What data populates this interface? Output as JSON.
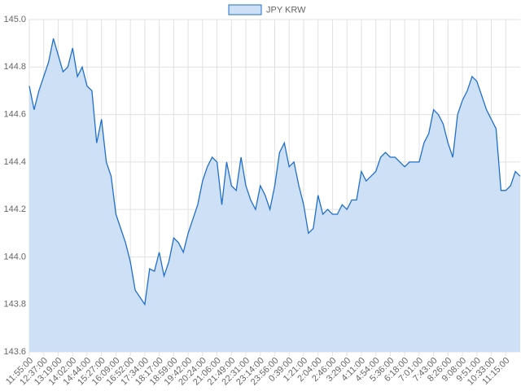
{
  "chart_data": {
    "type": "area",
    "categories": [
      "11:55:00",
      null,
      null,
      "12:37:00",
      null,
      null,
      "13:19:00",
      null,
      null,
      "14:02:00",
      null,
      null,
      "14:44:00",
      null,
      null,
      "15:27:00",
      null,
      null,
      "16:09:00",
      null,
      null,
      "16:52:00",
      null,
      null,
      "17:34:00",
      null,
      null,
      "18:17:00",
      null,
      null,
      "18:59:00",
      null,
      null,
      "19:42:00",
      null,
      null,
      "20:24:00",
      null,
      null,
      "21:06:00",
      null,
      null,
      "21:49:00",
      null,
      null,
      "22:31:00",
      null,
      null,
      "23:14:00",
      null,
      null,
      "23:56:00",
      null,
      null,
      "0:39:00",
      null,
      null,
      "1:21:00",
      null,
      null,
      "2:04:00",
      null,
      null,
      "2:46:00",
      null,
      null,
      "3:29:00",
      null,
      null,
      "4:11:00",
      null,
      null,
      "4:54:00",
      null,
      null,
      "5:36:00",
      null,
      null,
      "6:18:00",
      null,
      null,
      "7:01:00",
      null,
      null,
      "7:43:00",
      null,
      null,
      "8:26:00",
      null,
      null,
      "9:08:00",
      null,
      null,
      "9:51:00",
      null,
      null,
      "10:33:00",
      null,
      null,
      "11:15:00",
      null,
      null,
      null
    ],
    "series": [
      {
        "name": "JPY KRW",
        "color": "#1f6fcc",
        "fill": "#cde0f5",
        "values": [
          144.72,
          144.62,
          144.7,
          144.76,
          144.82,
          144.92,
          144.85,
          144.78,
          144.8,
          144.88,
          144.76,
          144.8,
          144.72,
          144.7,
          144.48,
          144.58,
          144.4,
          144.34,
          144.18,
          144.12,
          144.06,
          143.98,
          143.86,
          143.83,
          143.8,
          143.95,
          143.94,
          144.02,
          143.92,
          143.98,
          144.08,
          144.06,
          144.02,
          144.1,
          144.16,
          144.22,
          144.32,
          144.38,
          144.42,
          144.4,
          144.22,
          144.4,
          144.3,
          144.28,
          144.42,
          144.3,
          144.24,
          144.2,
          144.3,
          144.26,
          144.2,
          144.3,
          144.44,
          144.48,
          144.38,
          144.4,
          144.3,
          144.22,
          144.1,
          144.12,
          144.26,
          144.18,
          144.2,
          144.18,
          144.18,
          144.22,
          144.2,
          144.24,
          144.24,
          144.36,
          144.32,
          144.34,
          144.36,
          144.42,
          144.44,
          144.42,
          144.42,
          144.4,
          144.38,
          144.4,
          144.4,
          144.4,
          144.48,
          144.52,
          144.62,
          144.6,
          144.56,
          144.48,
          144.42,
          144.6,
          144.66,
          144.7,
          144.76,
          144.74,
          144.68,
          144.62,
          144.58,
          144.54,
          144.28,
          144.28,
          144.3,
          144.36,
          144.34
        ]
      }
    ],
    "ylim": [
      143.6,
      145.0
    ],
    "yticks": [
      143.6,
      143.8,
      {
        "value": 144.0,
        "label": "144.0"
      },
      144.2,
      144.4,
      144.6,
      144.8,
      {
        "value": 145.0,
        "label": "145.0"
      }
    ],
    "grid": true,
    "legend": "top"
  }
}
